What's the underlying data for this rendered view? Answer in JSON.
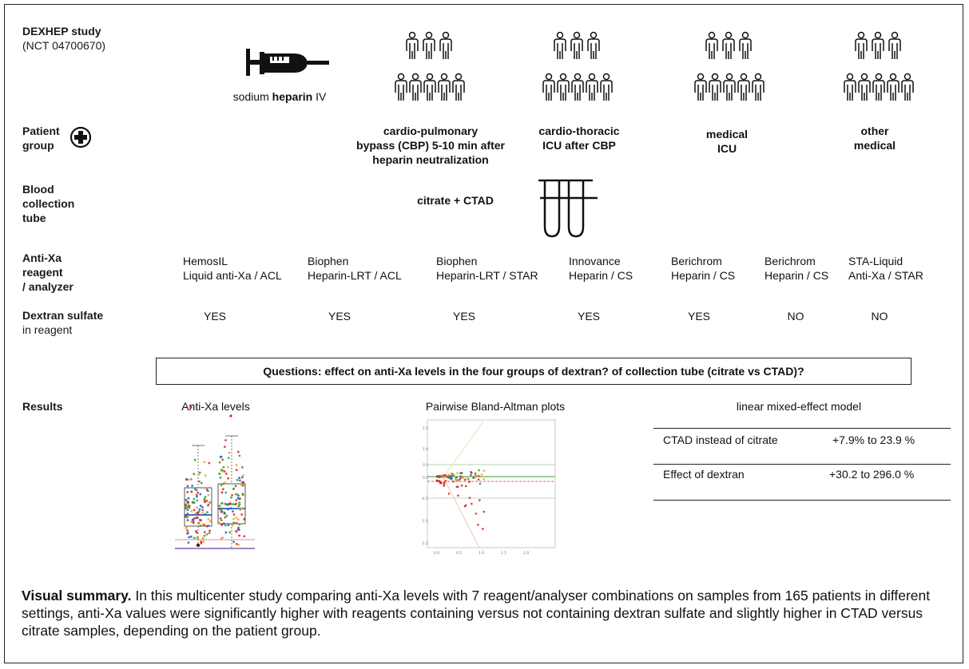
{
  "row_labels": {
    "study": "DEXHEP study",
    "study_id": "(NCT 04700670)",
    "patient_group": [
      "Patient",
      "group"
    ],
    "blood_tube": [
      "Blood",
      "collection",
      "tube"
    ],
    "reagent": [
      "Anti-Xa",
      "reagent",
      "/ analyzer"
    ],
    "dextran": "Dextran sulfate",
    "dextran_sub": "in reagent",
    "results": "Results"
  },
  "heparin": {
    "pre": "sodium ",
    "bold": "heparin",
    "post": " IV"
  },
  "groups": [
    {
      "lines": [
        "cardio-pulmonary",
        "bypass (CBP) 5-10 min after",
        "heparin neutralization"
      ]
    },
    {
      "lines": [
        "cardio-thoracic",
        "ICU after CBP"
      ]
    },
    {
      "lines": [
        "medical",
        "ICU"
      ]
    },
    {
      "lines": [
        "other",
        "medical"
      ]
    }
  ],
  "tube_text": "citrate + CTAD",
  "reagents": [
    {
      "line1": "HemosIL",
      "line2": "Liquid anti-Xa / ACL",
      "dextran": "YES"
    },
    {
      "line1": "Biophen",
      "line2": "Heparin-LRT / ACL",
      "dextran": "YES"
    },
    {
      "line1": "Biophen",
      "line2": "Heparin-LRT / STAR",
      "dextran": "YES"
    },
    {
      "line1": "Innovance",
      "line2": "Heparin / CS",
      "dextran": "YES"
    },
    {
      "line1": "Berichrom",
      "line2": "Heparin / CS",
      "dextran": "YES"
    },
    {
      "line1": "Berichrom",
      "line2": "Heparin / CS",
      "dextran": "NO"
    },
    {
      "line1": "STA-Liquid",
      "line2": "Anti-Xa / STAR",
      "dextran": "NO"
    }
  ],
  "question": "Questions: effect on anti-Xa levels in the four groups of dextran? of collection tube (citrate vs CTAD)?",
  "results": {
    "antixa_title": "Anti-Xa levels",
    "bland_title": "Pairwise Bland-Altman plots",
    "model_title": "linear mixed-effect model",
    "bland_xticks": [
      "0.0",
      "0.5",
      "1.0",
      "1.5",
      "2.0"
    ],
    "bland_yticks": [
      "1.5",
      "1.0",
      "0.5",
      "0.0",
      "-0.5",
      "-1.0",
      "-1.5"
    ],
    "model_rows": [
      {
        "label": "CTAD instead of citrate",
        "value": "+7.9% to 23.9 %"
      },
      {
        "label": "Effect of dextran",
        "value": "+30.2 to 296.0 %"
      }
    ]
  },
  "summary": {
    "bold": "Visual summary.",
    "text": " In this multicenter study comparing anti-Xa levels with 7 reagent/analyser combinations on samples from 165 patients in different settings, anti-Xa values were significantly higher with reagents containing versus not containing dextran sulfate and slightly higher in CTAD versus citrate samples, depending on the patient group."
  },
  "colors": {
    "red": "#d62728",
    "blue": "#1f5fbf",
    "orange": "#f0a030",
    "green": "#2ca02c",
    "purple": "#6a3d9a"
  }
}
